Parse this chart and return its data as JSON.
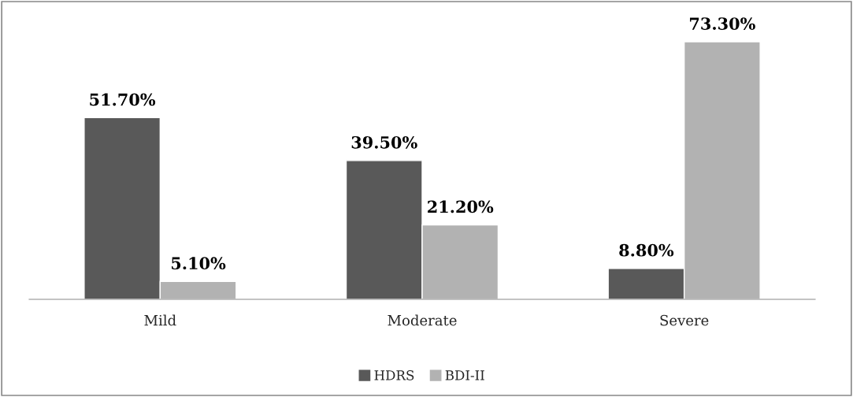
{
  "chart_data": {
    "type": "bar",
    "categories": [
      "Mild",
      "Moderate",
      "Severe"
    ],
    "series": [
      {
        "name": "HDRS",
        "color": "#595959",
        "values": [
          51.7,
          39.5,
          8.8
        ],
        "value_labels": [
          "51.70%",
          "39.50%",
          "8.80%"
        ]
      },
      {
        "name": "BDI-II",
        "color": "#b2b2b2",
        "values": [
          5.1,
          21.2,
          73.3
        ],
        "value_labels": [
          "5.10%",
          "21.20%",
          "73.30%"
        ]
      }
    ],
    "legend": "bottom",
    "grid": false
  }
}
